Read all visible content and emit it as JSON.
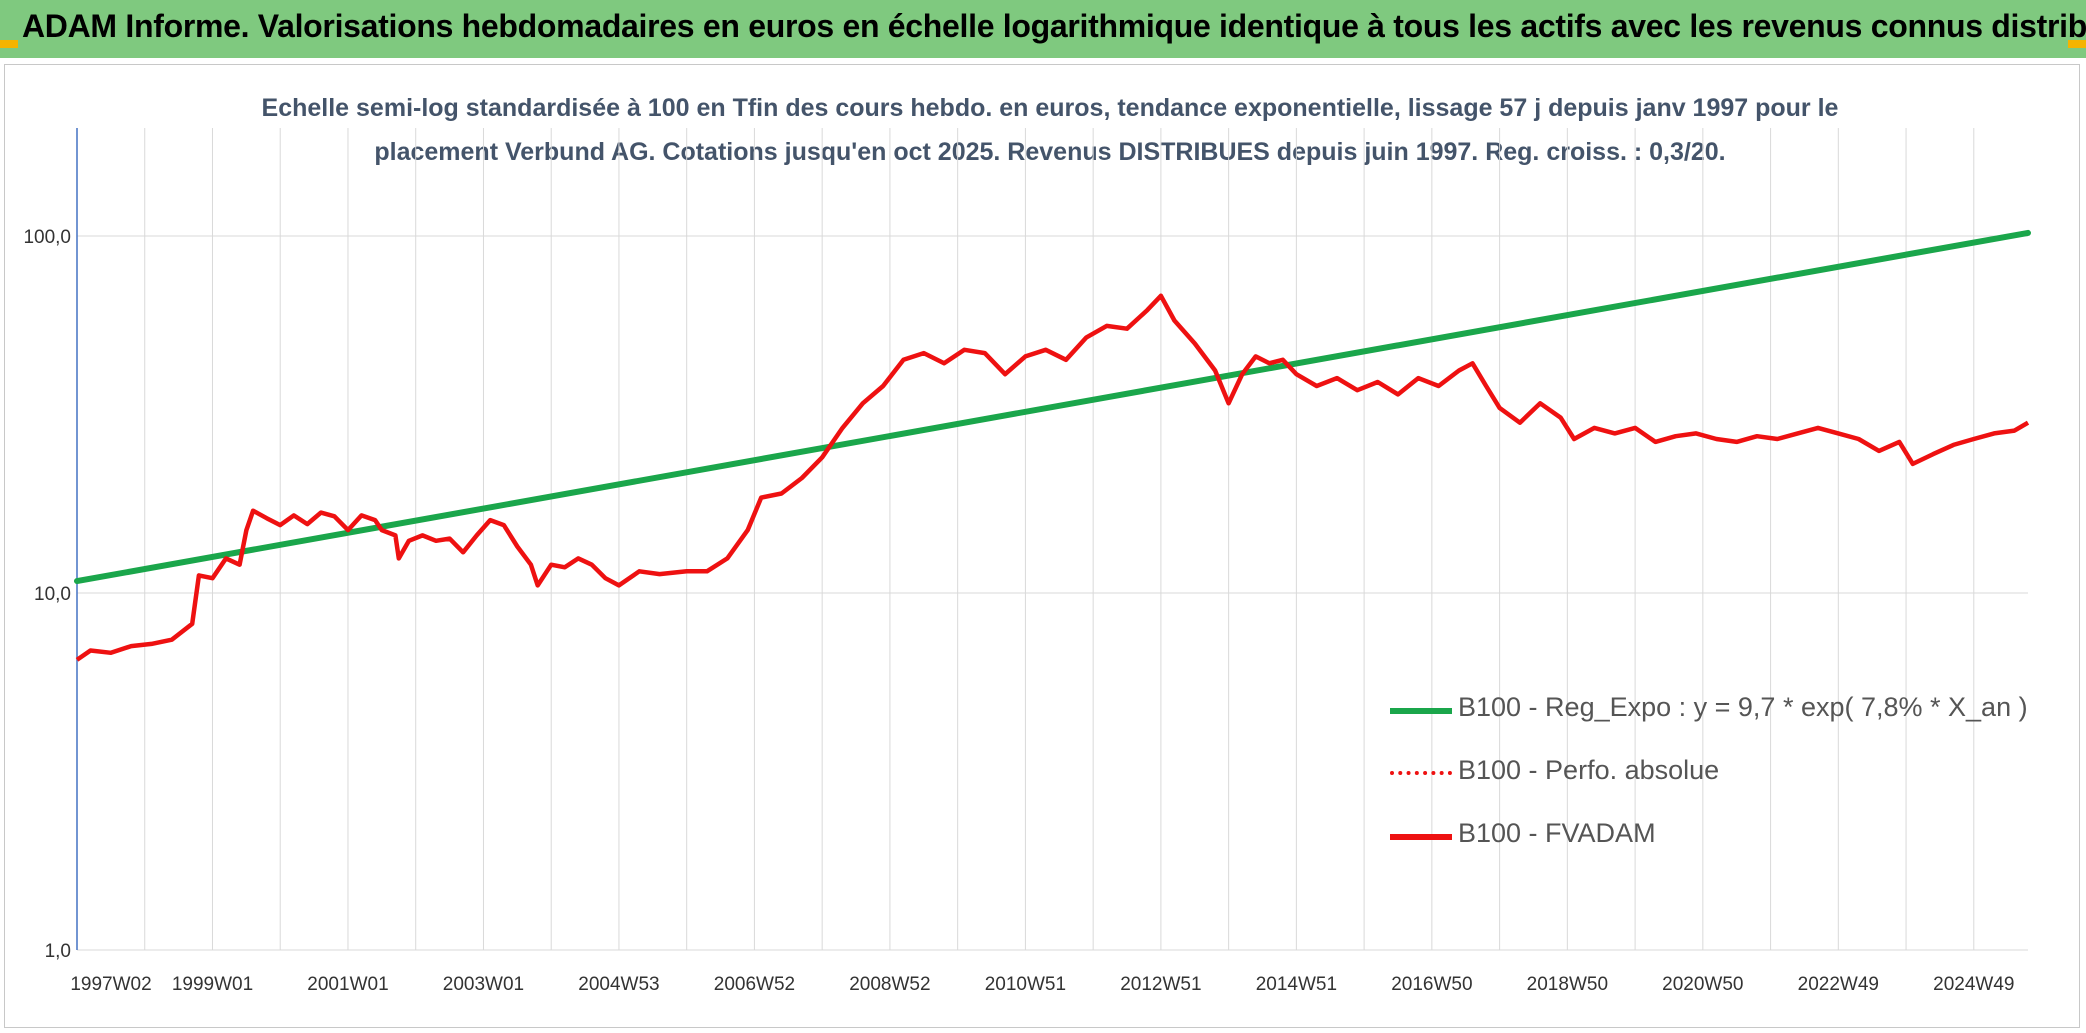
{
  "header": {
    "title": "ADAM Informe. Valorisations hebdomadaires en euros en échelle logarithmique identique à tous les actifs avec les revenus connus distribués"
  },
  "colors": {
    "banner": "#7fc97f",
    "regression": "#1aa64b",
    "fvadam": "#ee1111",
    "absolute": "#ee1111",
    "grid": "#d9d9d9"
  },
  "chart_data": {
    "type": "line",
    "title": "Echelle semi-log standardisée à 100 en Tfin des cours hebdo. en euros, tendance exponentielle, lissage 57 j depuis janv 1997 pour le placement Verbund AG. Cotations jusqu'en oct 2025. Revenus DISTRIBUES depuis juin 1997. Reg. croiss. : 0,3/20.",
    "yscale": "log",
    "ylim": [
      1,
      200
    ],
    "xlim": [
      1997.0,
      2025.8
    ],
    "grid": true,
    "legend_position": "right",
    "y_ticks": [
      {
        "value": 1,
        "label": "1,0"
      },
      {
        "value": 10,
        "label": "10,0"
      },
      {
        "value": 100,
        "label": "100,0"
      }
    ],
    "x_ticks": [
      {
        "x": 1997.0,
        "label": "1997W02"
      },
      {
        "x": 1999.0,
        "label": "1999W01"
      },
      {
        "x": 2001.0,
        "label": "2001W01"
      },
      {
        "x": 2003.0,
        "label": "2003W01"
      },
      {
        "x": 2005.0,
        "label": "2004W53"
      },
      {
        "x": 2007.0,
        "label": "2006W52"
      },
      {
        "x": 2009.0,
        "label": "2008W52"
      },
      {
        "x": 2011.0,
        "label": "2010W51"
      },
      {
        "x": 2013.0,
        "label": "2012W51"
      },
      {
        "x": 2015.0,
        "label": "2014W51"
      },
      {
        "x": 2017.0,
        "label": "2016W50"
      },
      {
        "x": 2019.0,
        "label": "2018W50"
      },
      {
        "x": 2021.0,
        "label": "2020W50"
      },
      {
        "x": 2023.0,
        "label": "2022W49"
      },
      {
        "x": 2025.0,
        "label": "2024W49"
      }
    ],
    "legend": [
      {
        "label": "B100 - Reg_Expo : y = 9,7 * exp( 7,8% *  X_an )",
        "style": "solid-green"
      },
      {
        "label": "B100 - Perfo. absolue",
        "style": "dotted-red"
      },
      {
        "label": "B100 - FVADAM",
        "style": "solid-red"
      }
    ],
    "series": [
      {
        "key": "regression",
        "points": [
          [
            1997.0,
            10.8
          ],
          [
            2025.8,
            102
          ]
        ]
      },
      {
        "key": "fvadam",
        "points": [
          [
            1997.0,
            6.5
          ],
          [
            1997.2,
            6.9
          ],
          [
            1997.5,
            6.8
          ],
          [
            1997.8,
            7.1
          ],
          [
            1998.1,
            7.2
          ],
          [
            1998.4,
            7.4
          ],
          [
            1998.7,
            8.2
          ],
          [
            1998.8,
            11.2
          ],
          [
            1999.0,
            11.0
          ],
          [
            1999.2,
            12.5
          ],
          [
            1999.4,
            12.0
          ],
          [
            1999.5,
            15.0
          ],
          [
            1999.6,
            17.0
          ],
          [
            1999.8,
            16.2
          ],
          [
            2000.0,
            15.5
          ],
          [
            2000.2,
            16.5
          ],
          [
            2000.4,
            15.6
          ],
          [
            2000.6,
            16.8
          ],
          [
            2000.8,
            16.4
          ],
          [
            2001.0,
            15.0
          ],
          [
            2001.2,
            16.5
          ],
          [
            2001.4,
            16.0
          ],
          [
            2001.5,
            15.0
          ],
          [
            2001.7,
            14.5
          ],
          [
            2001.75,
            12.5
          ],
          [
            2001.9,
            14.0
          ],
          [
            2002.1,
            14.5
          ],
          [
            2002.3,
            14.0
          ],
          [
            2002.5,
            14.2
          ],
          [
            2002.7,
            13.0
          ],
          [
            2002.9,
            14.5
          ],
          [
            2003.1,
            16.0
          ],
          [
            2003.3,
            15.5
          ],
          [
            2003.5,
            13.5
          ],
          [
            2003.7,
            12.0
          ],
          [
            2003.8,
            10.5
          ],
          [
            2004.0,
            12.0
          ],
          [
            2004.2,
            11.8
          ],
          [
            2004.4,
            12.5
          ],
          [
            2004.6,
            12.0
          ],
          [
            2004.8,
            11.0
          ],
          [
            2005.0,
            10.5
          ],
          [
            2005.3,
            11.5
          ],
          [
            2005.6,
            11.3
          ],
          [
            2006.0,
            11.5
          ],
          [
            2006.3,
            11.5
          ],
          [
            2006.6,
            12.5
          ],
          [
            2006.9,
            15.0
          ],
          [
            2007.1,
            18.5
          ],
          [
            2007.4,
            19.0
          ],
          [
            2007.7,
            21.0
          ],
          [
            2008.0,
            24.0
          ],
          [
            2008.3,
            29.0
          ],
          [
            2008.6,
            34.0
          ],
          [
            2008.9,
            38.0
          ],
          [
            2009.2,
            45.0
          ],
          [
            2009.5,
            47.0
          ],
          [
            2009.8,
            44.0
          ],
          [
            2010.1,
            48.0
          ],
          [
            2010.4,
            47.0
          ],
          [
            2010.7,
            41.0
          ],
          [
            2011.0,
            46.0
          ],
          [
            2011.3,
            48.0
          ],
          [
            2011.6,
            45.0
          ],
          [
            2011.9,
            52.0
          ],
          [
            2012.2,
            56.0
          ],
          [
            2012.5,
            55.0
          ],
          [
            2012.8,
            62.0
          ],
          [
            2013.0,
            68.0
          ],
          [
            2013.2,
            58.0
          ],
          [
            2013.5,
            50.0
          ],
          [
            2013.8,
            42.0
          ],
          [
            2014.0,
            34.0
          ],
          [
            2014.2,
            41.0
          ],
          [
            2014.4,
            46.0
          ],
          [
            2014.6,
            44.0
          ],
          [
            2014.8,
            45.0
          ],
          [
            2015.0,
            41.0
          ],
          [
            2015.3,
            38.0
          ],
          [
            2015.6,
            40.0
          ],
          [
            2015.9,
            37.0
          ],
          [
            2016.2,
            39.0
          ],
          [
            2016.5,
            36.0
          ],
          [
            2016.8,
            40.0
          ],
          [
            2017.1,
            38.0
          ],
          [
            2017.4,
            42.0
          ],
          [
            2017.6,
            44.0
          ],
          [
            2017.8,
            38.0
          ],
          [
            2018.0,
            33.0
          ],
          [
            2018.3,
            30.0
          ],
          [
            2018.6,
            34.0
          ],
          [
            2018.9,
            31.0
          ],
          [
            2019.1,
            27.0
          ],
          [
            2019.4,
            29.0
          ],
          [
            2019.7,
            28.0
          ],
          [
            2020.0,
            29.0
          ],
          [
            2020.3,
            26.5
          ],
          [
            2020.6,
            27.5
          ],
          [
            2020.9,
            28.0
          ],
          [
            2021.2,
            27.0
          ],
          [
            2021.5,
            26.5
          ],
          [
            2021.8,
            27.5
          ],
          [
            2022.1,
            27.0
          ],
          [
            2022.4,
            28.0
          ],
          [
            2022.7,
            29.0
          ],
          [
            2023.0,
            28.0
          ],
          [
            2023.3,
            27.0
          ],
          [
            2023.6,
            25.0
          ],
          [
            2023.9,
            26.5
          ],
          [
            2024.1,
            23.0
          ],
          [
            2024.4,
            24.5
          ],
          [
            2024.7,
            26.0
          ],
          [
            2025.0,
            27.0
          ],
          [
            2025.3,
            28.0
          ],
          [
            2025.6,
            28.5
          ],
          [
            2025.8,
            30.0
          ]
        ]
      }
    ]
  }
}
